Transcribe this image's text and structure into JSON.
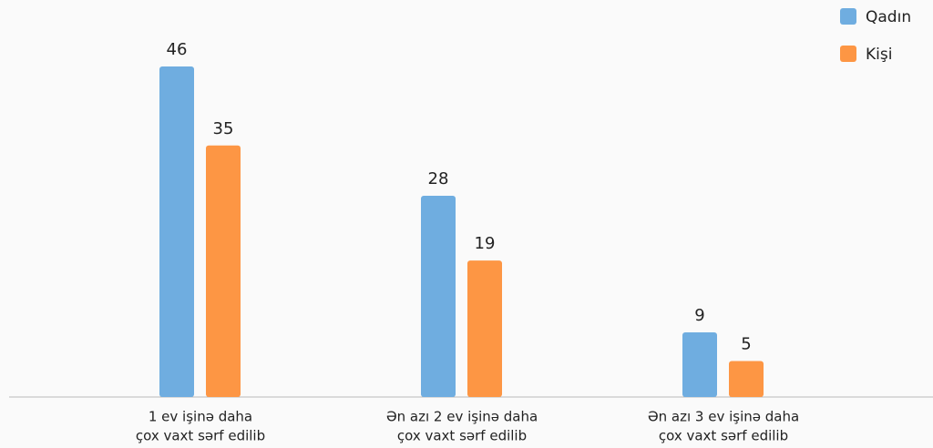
{
  "chart_data": {
    "type": "bar",
    "categories": [
      [
        "1 ev işinə daha",
        "çox vaxt sərf edilib"
      ],
      [
        "Ən azı 2 ev işinə daha",
        "çox vaxt sərf edilib"
      ],
      [
        "Ən azı 3 ev işinə daha",
        "çox vaxt sərf edilib"
      ]
    ],
    "series": [
      {
        "name": "Qadın",
        "color": "#6fade0",
        "values": [
          46,
          28,
          9
        ]
      },
      {
        "name": "Kişi",
        "color": "#fd9644",
        "values": [
          35,
          19,
          5
        ]
      }
    ],
    "legend": "top-right"
  }
}
